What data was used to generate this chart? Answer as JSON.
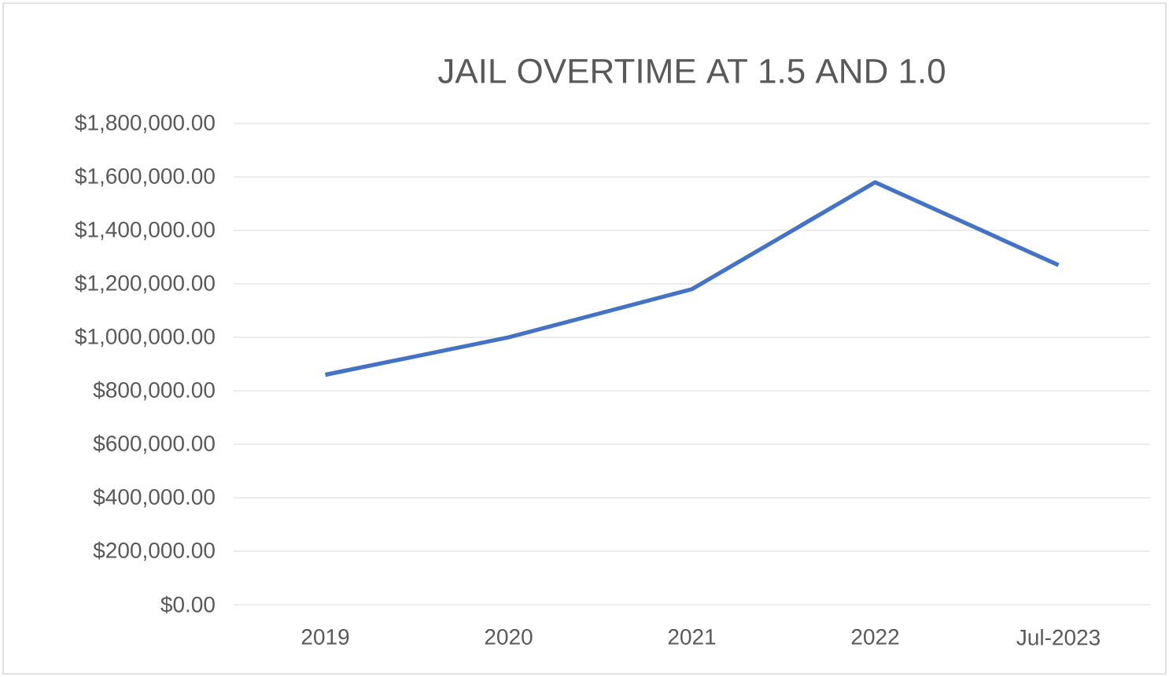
{
  "chart_data": {
    "type": "line",
    "title": "JAIL OVERTIME AT 1.5 AND 1.0",
    "categories": [
      "2019",
      "2020",
      "2021",
      "2022",
      "Jul-2023"
    ],
    "values": [
      860000,
      1000000,
      1180000,
      1580000,
      1270000
    ],
    "color": "#4472c4",
    "ylim": [
      0,
      1800000
    ],
    "yticks": [
      {
        "value": 0,
        "label": "$0.00"
      },
      {
        "value": 200000,
        "label": "$200,000.00"
      },
      {
        "value": 400000,
        "label": "$400,000.00"
      },
      {
        "value": 600000,
        "label": "$600,000.00"
      },
      {
        "value": 800000,
        "label": "$800,000.00"
      },
      {
        "value": 1000000,
        "label": "$1,000,000.00"
      },
      {
        "value": 1200000,
        "label": "$1,200,000.00"
      },
      {
        "value": 1400000,
        "label": "$1,400,000.00"
      },
      {
        "value": 1600000,
        "label": "$1,600,000.00"
      },
      {
        "value": 1800000,
        "label": "$1,800,000.00"
      }
    ],
    "grid": "y",
    "marker": "none",
    "line_style": "solid"
  }
}
